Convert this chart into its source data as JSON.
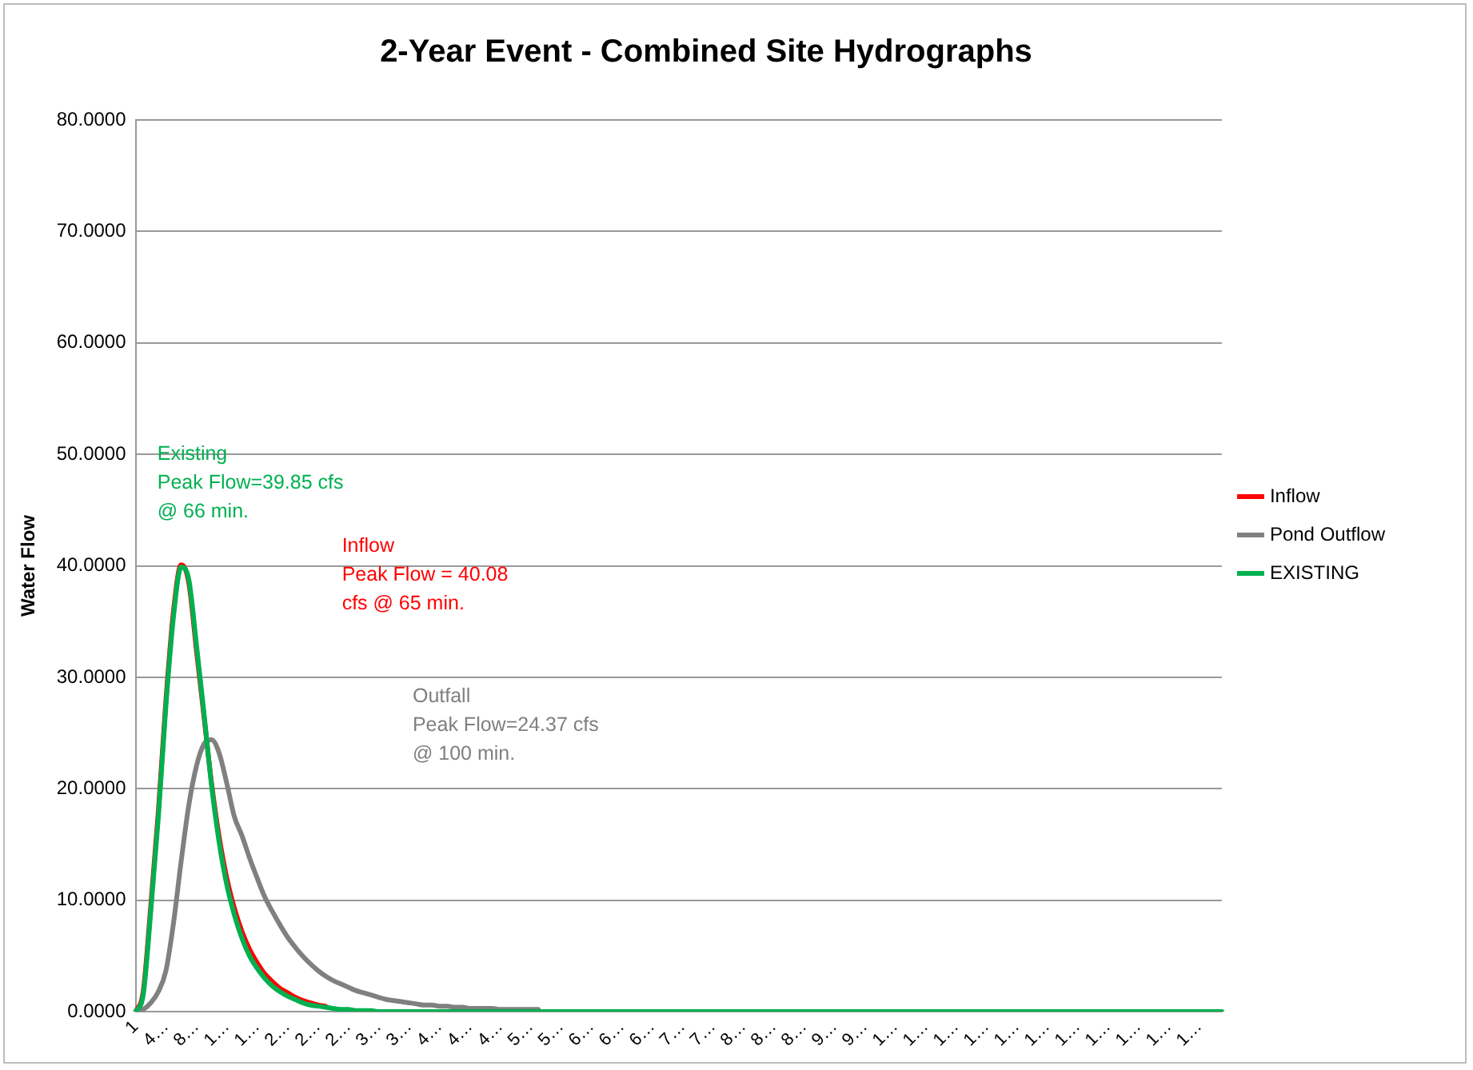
{
  "chart_data": {
    "type": "line",
    "title": "2-Year Event - Combined Site Hydrographs",
    "ylabel": "Water Flow",
    "categories": [
      "1",
      null,
      null,
      null,
      "4…",
      null,
      null,
      null,
      "8…",
      null,
      null,
      null,
      "1…",
      null,
      null,
      null,
      "1…",
      null,
      null,
      null,
      "2…",
      null,
      null,
      null,
      "2…",
      null,
      null,
      null,
      "2…",
      null,
      null,
      null,
      "3…",
      null,
      null,
      null,
      "3…",
      null,
      null,
      null,
      "4…",
      null,
      null,
      null,
      "4…",
      null,
      null,
      null,
      "4…",
      null,
      null,
      null,
      "5…",
      null,
      null,
      null,
      "5…",
      null,
      null,
      null,
      "6…",
      null,
      null,
      null,
      "6…",
      null,
      null,
      null,
      "6…",
      null,
      null,
      null,
      "7…",
      null,
      null,
      null,
      "7…",
      null,
      null,
      null,
      "8…",
      null,
      null,
      null,
      "8…",
      null,
      null,
      null,
      "8…",
      null,
      null,
      null,
      "9…",
      null,
      null,
      null,
      "9…",
      null,
      null,
      null,
      "1…",
      null,
      null,
      null,
      "1…",
      null,
      null,
      null,
      "1…",
      null,
      null,
      null,
      "1…",
      null,
      null,
      null,
      "1…",
      null,
      null,
      null,
      "1…",
      null,
      null,
      null,
      "1…",
      null,
      null,
      null,
      "1…",
      null,
      null,
      null,
      "1…",
      null,
      null,
      null,
      "1…",
      null,
      null,
      null,
      "1…",
      null,
      null,
      null
    ],
    "ylim": [
      0,
      80
    ],
    "yticks": [
      {
        "value": 0,
        "label": "0.0000"
      },
      {
        "value": 10,
        "label": "10.0000"
      },
      {
        "value": 20,
        "label": "20.0000"
      },
      {
        "value": 30,
        "label": "30.0000"
      },
      {
        "value": 40,
        "label": "40.0000"
      },
      {
        "value": 50,
        "label": "50.0000"
      },
      {
        "value": 60,
        "label": "60.0000"
      },
      {
        "value": 70,
        "label": "70.0000"
      },
      {
        "value": 80,
        "label": "80.0000"
      }
    ],
    "grid": "y",
    "legend": "right",
    "marker": "none",
    "line_style": "solid",
    "series": [
      {
        "name": "Inflow",
        "color": "#ff0000",
        "values": [
          0,
          1.8,
          9.5,
          18,
          28,
          36,
          40.1,
          38.5,
          32.5,
          26.5,
          20.5,
          15.7,
          12,
          9.3,
          7.2,
          5.6,
          4.4,
          3.4,
          2.7,
          2.1,
          1.7,
          1.3,
          1,
          0.8,
          0.6,
          0.5,
          null,
          null,
          null,
          null,
          null,
          null,
          null,
          null,
          null,
          null,
          null,
          null,
          null,
          null,
          null,
          null,
          null,
          null,
          null,
          null,
          null,
          null,
          null,
          null,
          null,
          null,
          null,
          null,
          null,
          null,
          null,
          null,
          null,
          null,
          null,
          null,
          null,
          null,
          null,
          null,
          null,
          null,
          null,
          null,
          null,
          null,
          null,
          null,
          null,
          null,
          null,
          null,
          null,
          null,
          null,
          null,
          null,
          null,
          null,
          null,
          null,
          null,
          null,
          null,
          null,
          null,
          null,
          null,
          null,
          null,
          null,
          null,
          null,
          null,
          null,
          null,
          null,
          null,
          null,
          null,
          null,
          null,
          null,
          null,
          null,
          null,
          null,
          null,
          null,
          null,
          null,
          null,
          null,
          null,
          null,
          null,
          null,
          null,
          null,
          null,
          null,
          null,
          null,
          null,
          null,
          null,
          null,
          null,
          null,
          null,
          null,
          null,
          null,
          null,
          null,
          null,
          null,
          null
        ]
      },
      {
        "name": "Pond Outflow",
        "color": "#808080",
        "values": [
          0,
          0.2,
          0.8,
          1.8,
          3.7,
          8,
          13.5,
          18.5,
          22,
          24,
          24.4,
          23.2,
          20.5,
          17.5,
          15.8,
          13.8,
          12,
          10.3,
          9,
          7.8,
          6.7,
          5.8,
          5,
          4.3,
          3.7,
          3.2,
          2.8,
          2.5,
          2.2,
          1.9,
          1.7,
          1.5,
          1.3,
          1.1,
          1,
          0.9,
          0.8,
          0.7,
          0.6,
          0.6,
          0.5,
          0.5,
          0.4,
          0.4,
          0.3,
          0.3,
          0.3,
          0.3,
          0.2,
          0.2,
          0.2,
          0.2,
          0.2,
          0.2,
          null,
          null,
          null,
          null,
          null,
          null,
          null,
          null,
          null,
          null,
          null,
          null,
          null,
          null,
          null,
          null,
          null,
          null,
          null,
          null,
          null,
          null,
          null,
          null,
          null,
          null,
          null,
          null,
          null,
          null,
          null,
          null,
          null,
          null,
          null,
          null,
          null,
          null,
          null,
          null,
          null,
          null,
          null,
          null,
          null,
          null,
          null,
          null,
          null,
          null,
          null,
          null,
          null,
          null,
          null,
          null,
          null,
          null,
          null,
          null,
          null,
          null,
          null,
          null,
          null,
          null,
          null,
          null,
          null,
          null,
          null,
          null,
          null,
          null,
          null,
          null,
          null,
          null,
          null,
          null,
          null,
          null,
          null,
          null,
          null,
          null,
          null,
          null,
          null,
          null
        ]
      },
      {
        "name": "EXISTING",
        "color": "#00b050",
        "values": [
          0,
          1.5,
          9,
          17.5,
          27.5,
          35.5,
          39.9,
          38.8,
          33,
          26.8,
          20.3,
          15.2,
          11.4,
          8.7,
          6.6,
          5,
          3.9,
          3,
          2.3,
          1.8,
          1.4,
          1.1,
          0.8,
          0.6,
          0.5,
          0.4,
          0.3,
          0.2,
          0.2,
          0.1,
          0.1,
          0.1,
          0,
          0,
          0,
          0,
          0,
          0,
          0,
          0,
          0,
          0,
          0,
          0,
          0,
          0,
          0,
          0,
          0,
          0,
          0,
          0,
          0,
          0,
          0,
          0,
          0,
          0,
          0,
          0,
          0,
          0,
          0,
          0,
          0,
          0,
          0,
          0,
          0,
          0,
          0,
          0,
          0,
          0,
          0,
          0,
          0,
          0,
          0,
          0,
          0,
          0,
          0,
          0,
          0,
          0,
          0,
          0,
          0,
          0,
          0,
          0,
          0,
          0,
          0,
          0,
          0,
          0,
          0,
          0,
          0,
          0,
          0,
          0,
          0,
          0,
          0,
          0,
          0,
          0,
          0,
          0,
          0,
          0,
          0,
          0,
          0,
          0,
          0,
          0,
          0,
          0,
          0,
          0,
          0,
          0,
          0,
          0,
          0,
          0,
          0,
          0,
          0,
          0,
          0,
          0,
          0,
          0,
          0,
          0,
          0,
          0,
          0,
          0
        ]
      }
    ],
    "annotations": [
      "Inflow\nPeak Flow = 40.08\ncfs @ 65 min.",
      "Outfall\nPeak Flow=24.37 cfs\n@ 100 min.",
      "Existing\nPeak Flow=39.85 cfs\n@ 66 min."
    ]
  }
}
